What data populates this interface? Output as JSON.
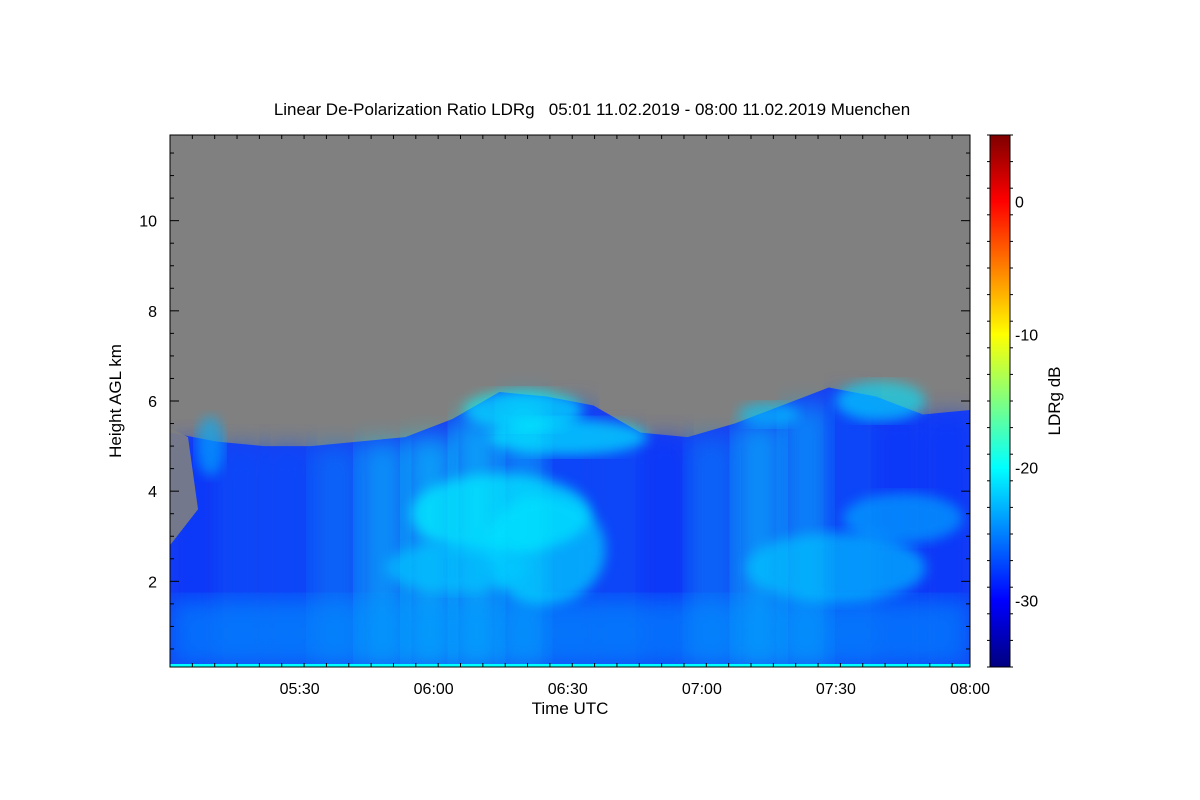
{
  "chart_data": {
    "type": "heatmap",
    "title": "Linear De-Polarization Ratio LDRg   05:01 11.02.2019 - 08:00 11.02.2019 Muenchen",
    "xlabel": "Time UTC",
    "ylabel": "Height AGL km",
    "colorbar_label": "LDRg dB",
    "x_range": [
      "05:01",
      "08:00"
    ],
    "y_range": [
      0.1,
      11.9
    ],
    "x_ticks": [
      "05:30",
      "06:00",
      "06:30",
      "07:00",
      "07:30",
      "08:00"
    ],
    "y_ticks": [
      2,
      4,
      6,
      8,
      10
    ],
    "colorbar_range": [
      -35,
      5
    ],
    "colorbar_ticks": [
      0,
      -10,
      -20,
      -30
    ],
    "colormap": [
      "#00007f",
      "#0000ff",
      "#0080ff",
      "#00ffff",
      "#80ff80",
      "#ffff00",
      "#ff8000",
      "#ff0000",
      "#7f0000"
    ],
    "no_data_color": "#808080",
    "cloud_top_km": [
      5.3,
      5.1,
      5.0,
      5.0,
      5.1,
      5.2,
      5.6,
      6.2,
      6.1,
      5.9,
      5.3,
      5.2,
      5.5,
      5.9,
      6.3,
      6.1,
      5.7,
      5.8
    ],
    "dominant_ldr_db": [
      -28,
      -27,
      -27,
      -25,
      -22,
      -21,
      -21,
      -23,
      -27,
      -27,
      -28,
      -25,
      -22,
      -23,
      -27,
      -28,
      -28,
      -28
    ]
  }
}
